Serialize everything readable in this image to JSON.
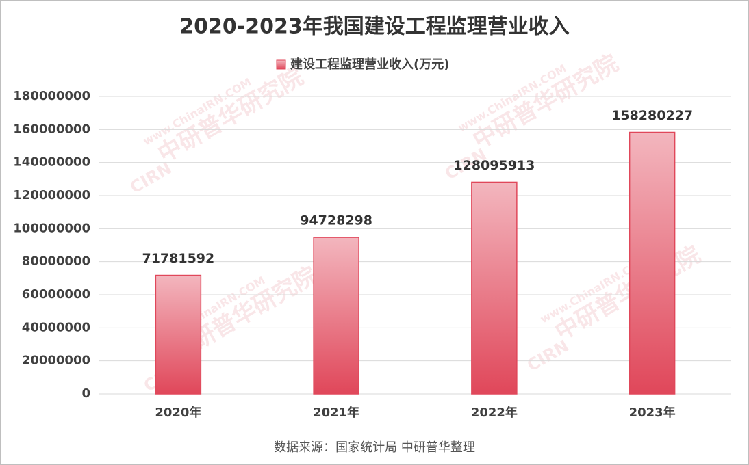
{
  "chart_data": {
    "type": "bar",
    "title": "2020-2023年我国建设工程监理营业收入",
    "categories": [
      "2020年",
      "2021年",
      "2022年",
      "2023年"
    ],
    "series": [
      {
        "name": "建设工程监理营业收入(万元)",
        "color": "#e0475a",
        "values": [
          71781592,
          94728298,
          128095913,
          158280227
        ]
      }
    ],
    "ylim": [
      0,
      180000000
    ],
    "yticks": [
      0,
      20000000,
      40000000,
      60000000,
      80000000,
      100000000,
      120000000,
      140000000,
      160000000,
      180000000
    ],
    "grid": true,
    "legend": "top",
    "source": "数据来源：国家统计局 中研普华整理",
    "watermark": {
      "url": "www.ChinaIRN.COM",
      "name": "中研普华研究院",
      "logo": "CIRN"
    }
  }
}
